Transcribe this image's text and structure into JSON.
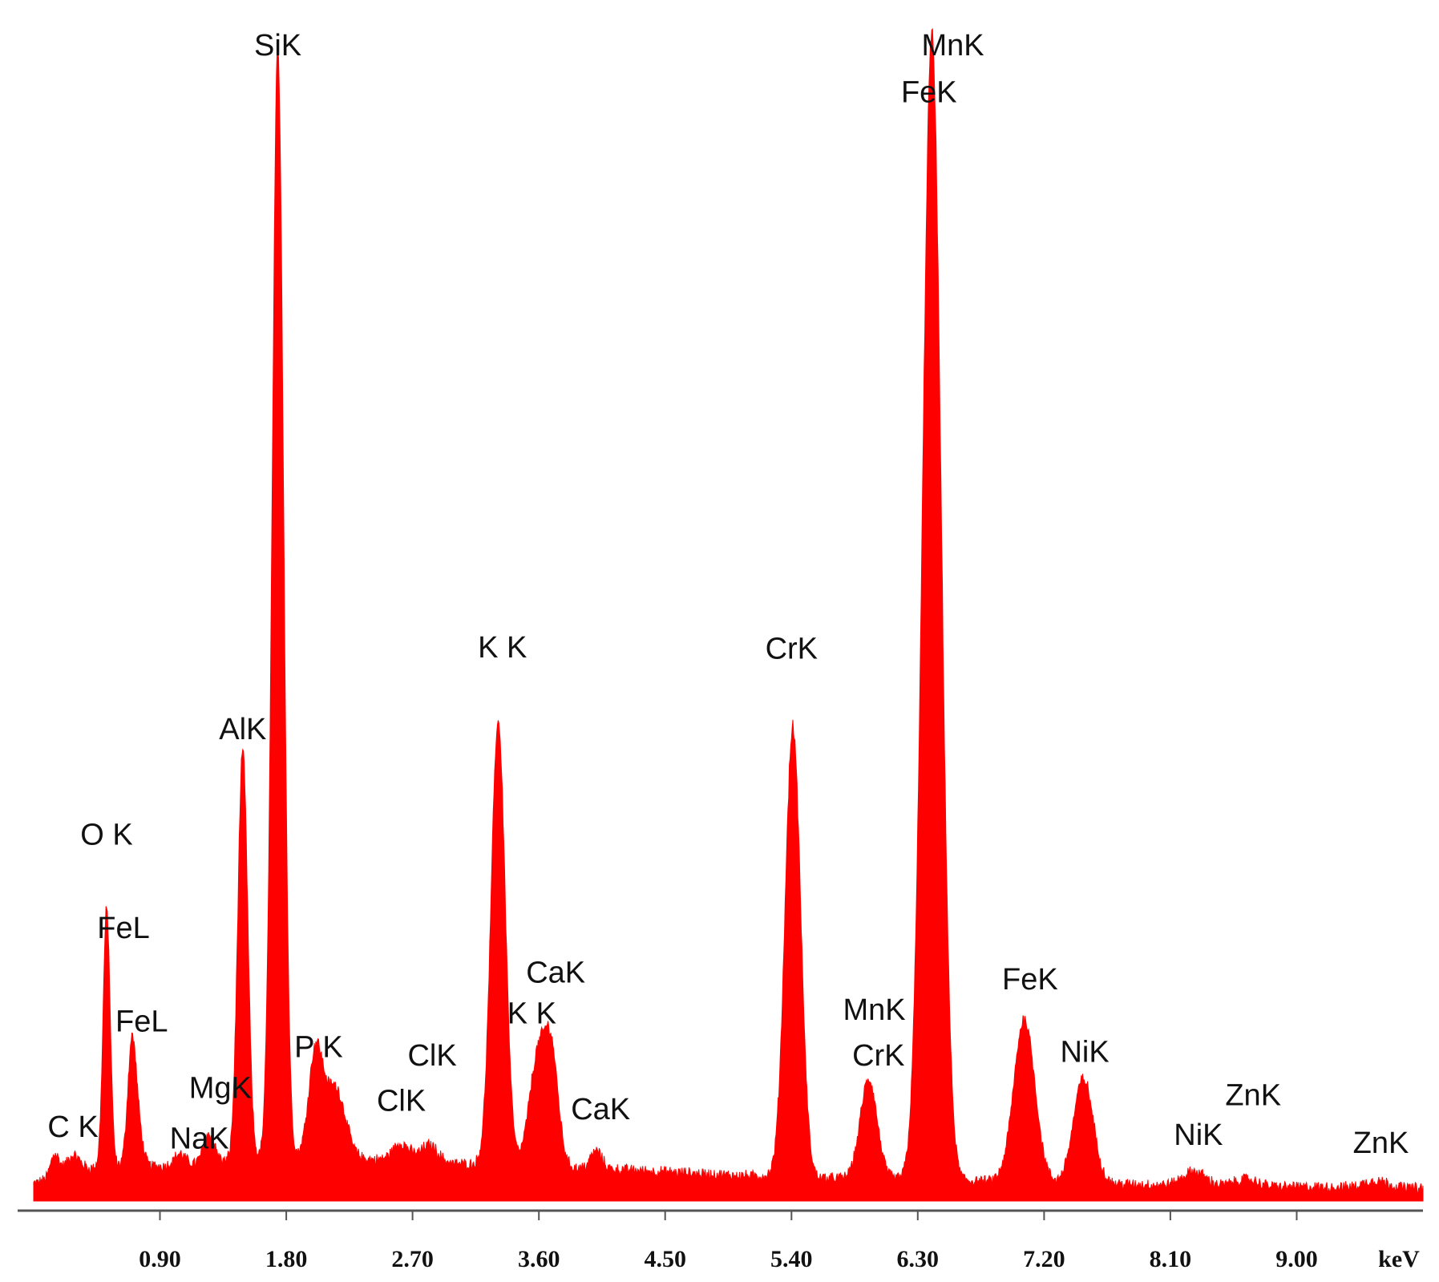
{
  "chart_data": {
    "type": "area",
    "title": "",
    "xlabel": "keV",
    "ylabel": "",
    "xlim": [
      0,
      9.9
    ],
    "ylim": [
      0,
      100
    ],
    "grid": false,
    "legend": "none",
    "colors": {
      "fill": "#ff0000",
      "axis": "#555555",
      "text": "#111111"
    },
    "x_ticks": [
      0.9,
      1.8,
      2.7,
      3.6,
      4.5,
      5.4,
      6.3,
      7.2,
      8.1,
      9.0
    ],
    "x_tick_labels": [
      "0.90",
      "1.80",
      "2.70",
      "3.60",
      "4.50",
      "5.40",
      "6.30",
      "7.20",
      "8.10",
      "9.00"
    ],
    "series": [
      {
        "background": [
          [
            0.0,
            1.5
          ],
          [
            0.2,
            2.2
          ],
          [
            0.5,
            3.0
          ],
          [
            1.0,
            3.0
          ],
          [
            1.5,
            3.5
          ],
          [
            2.0,
            3.8
          ],
          [
            2.5,
            3.5
          ],
          [
            3.0,
            3.2
          ],
          [
            3.5,
            3.0
          ],
          [
            4.0,
            2.8
          ],
          [
            4.5,
            2.5
          ],
          [
            5.0,
            2.2
          ],
          [
            5.5,
            2.0
          ],
          [
            6.0,
            1.9
          ],
          [
            6.5,
            1.8
          ],
          [
            7.0,
            1.6
          ],
          [
            7.5,
            1.5
          ],
          [
            8.0,
            1.4
          ],
          [
            8.5,
            1.3
          ],
          [
            9.0,
            1.2
          ],
          [
            9.5,
            1.2
          ],
          [
            9.9,
            1.1
          ]
        ],
        "peaks": [
          {
            "center": 0.15,
            "height": 2.0,
            "width": 0.03
          },
          {
            "center": 0.28,
            "height": 1.5,
            "width": 0.05
          },
          {
            "center": 0.52,
            "height": 22.0,
            "width": 0.025
          },
          {
            "center": 0.7,
            "height": 10.5,
            "width": 0.03
          },
          {
            "center": 0.75,
            "height": 2.5,
            "width": 0.03
          },
          {
            "center": 1.04,
            "height": 1.0,
            "width": 0.04
          },
          {
            "center": 1.25,
            "height": 2.5,
            "width": 0.04
          },
          {
            "center": 1.49,
            "height": 35.0,
            "width": 0.035
          },
          {
            "center": 1.74,
            "height": 95.0,
            "width": 0.04
          },
          {
            "center": 2.01,
            "height": 9.0,
            "width": 0.05
          },
          {
            "center": 2.15,
            "height": 6.0,
            "width": 0.07
          },
          {
            "center": 2.62,
            "height": 1.5,
            "width": 0.06
          },
          {
            "center": 2.82,
            "height": 1.5,
            "width": 0.06
          },
          {
            "center": 3.31,
            "height": 38.0,
            "width": 0.05
          },
          {
            "center": 3.59,
            "height": 9.0,
            "width": 0.06
          },
          {
            "center": 3.69,
            "height": 9.0,
            "width": 0.05
          },
          {
            "center": 4.01,
            "height": 1.5,
            "width": 0.04
          },
          {
            "center": 5.41,
            "height": 38.5,
            "width": 0.055
          },
          {
            "center": 5.95,
            "height": 8.5,
            "width": 0.06
          },
          {
            "center": 6.4,
            "height": 98.0,
            "width": 0.065
          },
          {
            "center": 7.06,
            "height": 14.0,
            "width": 0.075
          },
          {
            "center": 7.48,
            "height": 9.0,
            "width": 0.07
          },
          {
            "center": 8.27,
            "height": 1.2,
            "width": 0.08
          },
          {
            "center": 8.64,
            "height": 0.6,
            "width": 0.08
          },
          {
            "center": 9.57,
            "height": 0.6,
            "width": 0.08
          }
        ]
      }
    ],
    "peak_labels": [
      {
        "text": "C K",
        "x": 0.28,
        "y": 5.5
      },
      {
        "text": "O K",
        "x": 0.52,
        "y": 30.5
      },
      {
        "text": "FeL",
        "x": 0.64,
        "y": 22.5
      },
      {
        "text": "FeL",
        "x": 0.77,
        "y": 14.5
      },
      {
        "text": "NaK",
        "x": 1.18,
        "y": 4.5
      },
      {
        "text": "MgK",
        "x": 1.33,
        "y": 8.8
      },
      {
        "text": "AlK",
        "x": 1.49,
        "y": 39.5
      },
      {
        "text": "SiK",
        "x": 1.74,
        "y": 98.0
      },
      {
        "text": "P K",
        "x": 2.03,
        "y": 12.3
      },
      {
        "text": "ClK",
        "x": 2.62,
        "y": 7.7
      },
      {
        "text": "ClK",
        "x": 2.84,
        "y": 11.6
      },
      {
        "text": "K K",
        "x": 3.34,
        "y": 46.5
      },
      {
        "text": "CaK",
        "x": 3.72,
        "y": 18.7
      },
      {
        "text": "K K",
        "x": 3.55,
        "y": 15.2
      },
      {
        "text": "CaK",
        "x": 4.04,
        "y": 7.0
      },
      {
        "text": "CrK",
        "x": 5.4,
        "y": 46.4
      },
      {
        "text": "MnK",
        "x": 5.99,
        "y": 15.5
      },
      {
        "text": "CrK",
        "x": 6.02,
        "y": 11.6
      },
      {
        "text": "MnK",
        "x": 6.55,
        "y": 98.0
      },
      {
        "text": "FeK",
        "x": 6.38,
        "y": 94.0
      },
      {
        "text": "FeK",
        "x": 7.1,
        "y": 18.1
      },
      {
        "text": "NiK",
        "x": 7.49,
        "y": 11.9
      },
      {
        "text": "NiK",
        "x": 8.3,
        "y": 4.8
      },
      {
        "text": "ZnK",
        "x": 8.69,
        "y": 8.2
      },
      {
        "text": "ZnK",
        "x": 9.6,
        "y": 4.1
      }
    ]
  }
}
